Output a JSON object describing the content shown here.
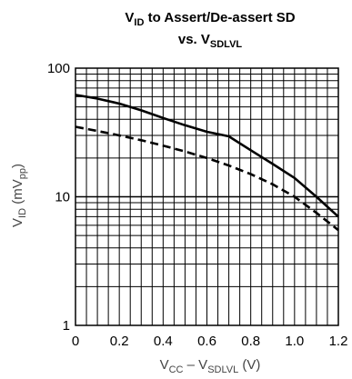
{
  "chart_data": {
    "type": "line",
    "title": {
      "line1": {
        "main": "V",
        "sub": "ID",
        "rest": " to Assert/De-assert SD"
      },
      "line2": {
        "main": "vs. V",
        "sub": "SDLVL"
      }
    },
    "xlabel": {
      "a": "V",
      "a_sub": "CC",
      "mid": " – V",
      "b_sub": "SDLVL",
      "rest": " (V)"
    },
    "ylabel": {
      "a": "V",
      "a_sub": "ID",
      "mid": " (mV",
      "b_sub": "pp",
      "rest": ")"
    },
    "xlim": [
      0,
      1.2
    ],
    "ylim": [
      1,
      100
    ],
    "y_scale": "log",
    "grid": true,
    "x_ticks": [
      0,
      0.2,
      0.4,
      0.6,
      0.8,
      1.0,
      1.2
    ],
    "x_tick_labels": [
      "0",
      "0.2",
      "0.4",
      "0.6",
      "0.8",
      "1.0",
      "1.2"
    ],
    "y_ticks": [
      1,
      10,
      100
    ],
    "y_tick_labels": [
      "1",
      "10",
      "100"
    ],
    "series": [
      {
        "style": "solid",
        "x": [
          0,
          0.1,
          0.2,
          0.3,
          0.4,
          0.5,
          0.6,
          0.7,
          0.8,
          0.9,
          1.0,
          1.1,
          1.2
        ],
        "y": [
          62,
          58,
          53,
          47,
          41,
          36,
          32,
          29.5,
          23,
          18,
          14,
          10,
          7
        ]
      },
      {
        "style": "dashed",
        "x": [
          0,
          0.1,
          0.2,
          0.3,
          0.4,
          0.5,
          0.6,
          0.7,
          0.8,
          0.9,
          1.0,
          1.1,
          1.2
        ],
        "y": [
          35,
          32.5,
          30,
          27.5,
          25,
          22.5,
          20,
          17.5,
          15,
          12.5,
          10,
          7.5,
          5.5
        ]
      }
    ]
  }
}
